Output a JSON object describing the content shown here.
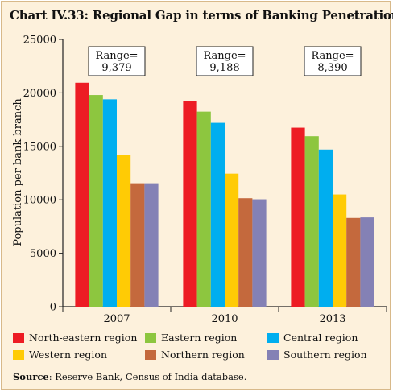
{
  "title": "Chart IV.33: Regional Gap in terms of Banking Penetration",
  "source": {
    "label": "Source",
    "text": ": Reserve Bank, Census of India database."
  },
  "colors": {
    "North-eastern region": "#ed1c24",
    "Eastern region": "#8dc63f",
    "Central region": "#00aeef",
    "Western region": "#ffcb05",
    "Northern region": "#c4693d",
    "Southern region": "#8481b5"
  },
  "chart_data": {
    "type": "bar",
    "title": "Chart IV.33: Regional Gap in terms of Banking Penetration",
    "xlabel": "",
    "ylabel": "Population per bank branch",
    "ylim": [
      0,
      25000
    ],
    "yticks": [
      0,
      5000,
      10000,
      15000,
      20000,
      25000
    ],
    "categories": [
      "2007",
      "2010",
      "2013"
    ],
    "series": [
      {
        "name": "North-eastern region",
        "values": [
          20950,
          19250,
          16750
        ]
      },
      {
        "name": "Eastern region",
        "values": [
          19800,
          18250,
          15950
        ]
      },
      {
        "name": "Central region",
        "values": [
          19400,
          17200,
          14700
        ]
      },
      {
        "name": "Western region",
        "values": [
          14200,
          12450,
          10500
        ]
      },
      {
        "name": "Northern region",
        "values": [
          11550,
          10150,
          8300
        ]
      },
      {
        "name": "Southern region",
        "values": [
          11550,
          10050,
          8350
        ]
      }
    ],
    "annotations": [
      {
        "category": "2007",
        "label": "Range=",
        "value": "9,379"
      },
      {
        "category": "2010",
        "label": "Range=",
        "value": "9,188"
      },
      {
        "category": "2013",
        "label": "Range=",
        "value": "8,390"
      }
    ],
    "grid": false,
    "legend_position": "bottom"
  }
}
